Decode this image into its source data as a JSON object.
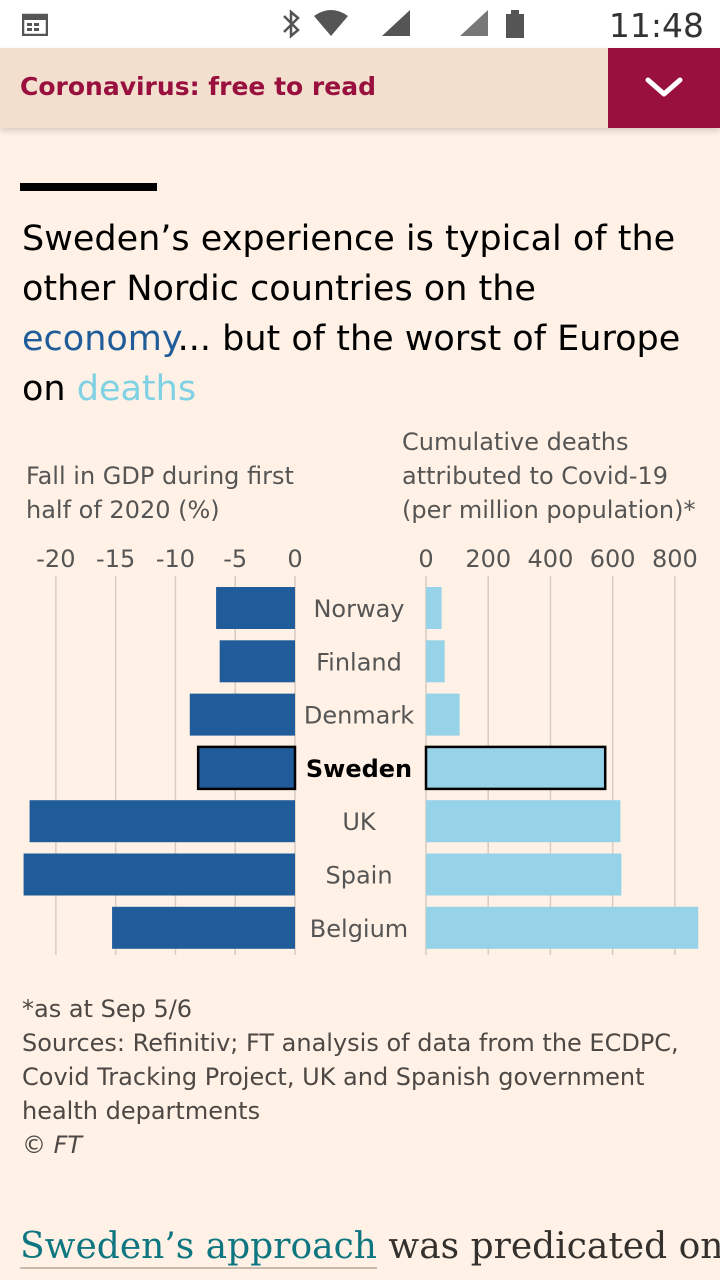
{
  "status_bar": {
    "time": "11:48"
  },
  "banner": {
    "title": "Coronavirus: free to read"
  },
  "headline": {
    "part1": "Sweden’s experience is typical of the other Nordic countries on the ",
    "econ": "economy",
    "part2": "... but of the worst of Europe on ",
    "deaths": "deaths"
  },
  "colors": {
    "gdp": "#1f5c99",
    "deaths": "#96d2e8",
    "accent": "#990f3d"
  },
  "chart_data": {
    "type": "bar",
    "layout": "butterfly",
    "categories": [
      "Norway",
      "Finland",
      "Denmark",
      "Sweden",
      "UK",
      "Spain",
      "Belgium"
    ],
    "highlight": "Sweden",
    "series": [
      {
        "name": "gdp_fall",
        "label_lines": [
          "Fall in GDP during first",
          "half of 2020 (%)"
        ],
        "values": [
          -6.6,
          -6.3,
          -8.8,
          -8.1,
          -22.2,
          -22.7,
          -15.3
        ],
        "range": [
          -23,
          0
        ],
        "ticks": [
          -20,
          -15,
          -10,
          -5,
          0
        ],
        "tick_labels": [
          "-20",
          "-15",
          "-10",
          "-5",
          "0"
        ]
      },
      {
        "name": "covid_deaths",
        "label_lines": [
          "Cumulative deaths",
          "attributed to Covid-19",
          "(per million population)*"
        ],
        "values": [
          50,
          60,
          108,
          576,
          625,
          628,
          875
        ],
        "range": [
          0,
          900
        ],
        "ticks": [
          0,
          200,
          400,
          600,
          800
        ],
        "tick_labels": [
          "0",
          "200",
          "400",
          "600",
          "800"
        ]
      }
    ]
  },
  "footnote": {
    "lines": [
      "*as at Sep 5/6",
      "Sources: Refinitiv; FT analysis of data from the ECDPC,",
      "Covid Tracking Project, UK and Spanish government",
      "health departments",
      "© FT"
    ]
  },
  "body": {
    "link": "Sweden’s approach",
    "rest": " was predicated on"
  }
}
